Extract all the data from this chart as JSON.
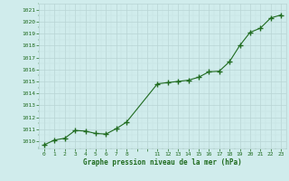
{
  "x": [
    0,
    1,
    2,
    3,
    4,
    5,
    6,
    7,
    8,
    11,
    12,
    13,
    14,
    15,
    16,
    17,
    18,
    19,
    20,
    21,
    22,
    23
  ],
  "y": [
    1009.7,
    1010.1,
    1010.25,
    1010.9,
    1010.85,
    1010.65,
    1010.6,
    1011.05,
    1011.6,
    1014.8,
    1014.9,
    1015.0,
    1015.1,
    1015.35,
    1015.8,
    1015.85,
    1016.65,
    1018.0,
    1019.1,
    1019.45,
    1020.3,
    1020.55
  ],
  "xticks_all": [
    0,
    1,
    2,
    3,
    4,
    5,
    6,
    7,
    8,
    9,
    10,
    11,
    12,
    13,
    14,
    15,
    16,
    17,
    18,
    19,
    20,
    21,
    22,
    23
  ],
  "xtick_labels": [
    "0",
    "1",
    "2",
    "3",
    "4",
    "5",
    "6",
    "7",
    "8",
    "",
    "",
    "11",
    "12",
    "13",
    "14",
    "15",
    "16",
    "17",
    "18",
    "19",
    "20",
    "21",
    "22",
    "23"
  ],
  "yticks": [
    1010,
    1011,
    1012,
    1013,
    1014,
    1015,
    1016,
    1017,
    1018,
    1019,
    1020,
    1021
  ],
  "ylim": [
    1009.4,
    1021.5
  ],
  "xlim": [
    -0.5,
    23.5
  ],
  "xlabel": "Graphe pression niveau de la mer (hPa)",
  "line_color": "#1f6b1f",
  "marker": "+",
  "marker_size": 4,
  "bg_color": "#d0ecec",
  "grid_major_color": "#b8d4d4",
  "grid_minor_color": "#c4e0e0",
  "tick_label_color": "#1f6b1f",
  "xlabel_color": "#1f6b1f",
  "line_width": 0.8
}
